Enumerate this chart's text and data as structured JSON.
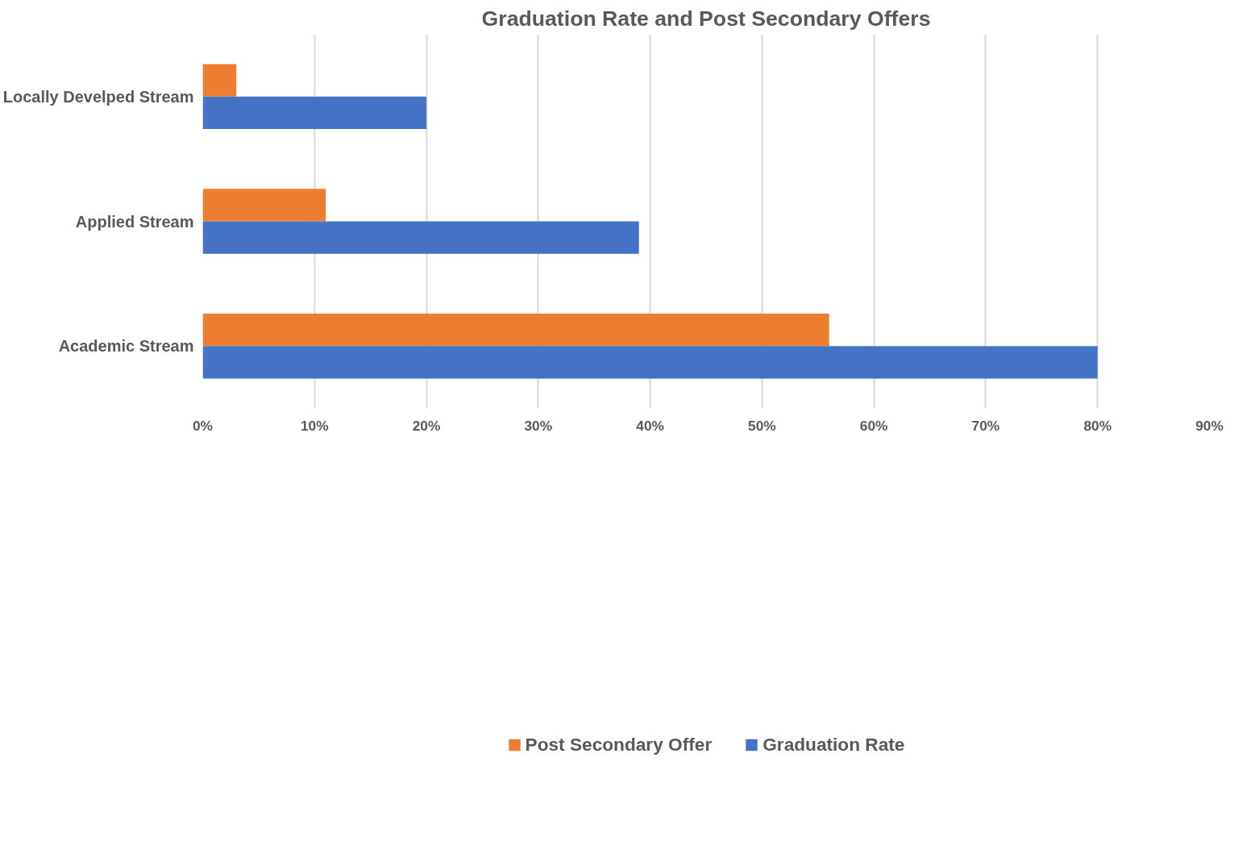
{
  "chart_data": {
    "type": "bar",
    "orientation": "horizontal",
    "title": "Graduation Rate and Post Secondary Offers",
    "categories": [
      "Locally Develped Stream",
      "Applied Stream",
      "Academic Stream"
    ],
    "series": [
      {
        "name": "Post Secondary Offer",
        "color": "#ed7d31",
        "values": [
          3,
          11,
          56
        ]
      },
      {
        "name": "Graduation Rate",
        "color": "#4472c4",
        "values": [
          20,
          39,
          80
        ]
      }
    ],
    "xlim": [
      0,
      90
    ],
    "xticks": [
      {
        "value": 0,
        "label": "0%"
      },
      {
        "value": 10,
        "label": "10%"
      },
      {
        "value": 20,
        "label": "20%"
      },
      {
        "value": 30,
        "label": "30%"
      },
      {
        "value": 40,
        "label": "40%"
      },
      {
        "value": 50,
        "label": "50%"
      },
      {
        "value": 60,
        "label": "60%"
      },
      {
        "value": 70,
        "label": "70%"
      },
      {
        "value": 80,
        "label": "80%"
      },
      {
        "value": 90,
        "label": "90%"
      }
    ],
    "grid": "x",
    "legend": "bottom"
  }
}
